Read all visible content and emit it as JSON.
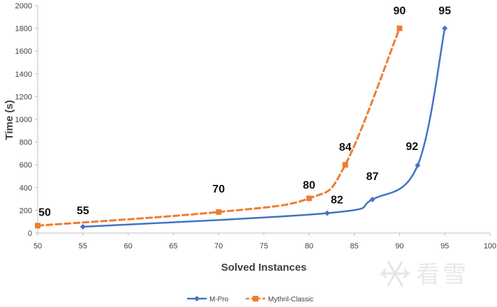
{
  "chart_data": {
    "type": "line",
    "xlabel": "Solved Instances",
    "ylabel": "Time (s)",
    "xlim": [
      50,
      100
    ],
    "ylim": [
      0,
      2000
    ],
    "xticks": [
      "50",
      "55",
      "60",
      "65",
      "70",
      "75",
      "80",
      "85",
      "90",
      "95",
      "100"
    ],
    "yticks": [
      "0",
      "200",
      "400",
      "600",
      "800",
      "1000",
      "1200",
      "1400",
      "1600",
      "1800",
      "2000"
    ],
    "grid": false,
    "legend_position": "bottom-center",
    "series": [
      {
        "name": "M-Pro",
        "color": "#4472c4",
        "marker": "diamond",
        "line_style": "solid",
        "points": [
          {
            "x": 55,
            "y": 55,
            "label": "55"
          },
          {
            "x": 82,
            "y": 175,
            "label": "82"
          },
          {
            "x": 87,
            "y": 295,
            "label": "87"
          },
          {
            "x": 92,
            "y": 595,
            "label": "92"
          },
          {
            "x": 95,
            "y": 1800,
            "label": "95"
          }
        ]
      },
      {
        "name": "Mythril-Classic",
        "color": "#ed7d31",
        "marker": "square",
        "line_style": "dashed",
        "points": [
          {
            "x": 50,
            "y": 65,
            "label": "50"
          },
          {
            "x": 70,
            "y": 185,
            "label": "70"
          },
          {
            "x": 80,
            "y": 305,
            "label": "80"
          },
          {
            "x": 84,
            "y": 600,
            "label": "84"
          },
          {
            "x": 90,
            "y": 1800,
            "label": "90"
          }
        ]
      }
    ]
  },
  "watermark": {
    "text": "看雪",
    "icon": "snowflake-icon"
  }
}
